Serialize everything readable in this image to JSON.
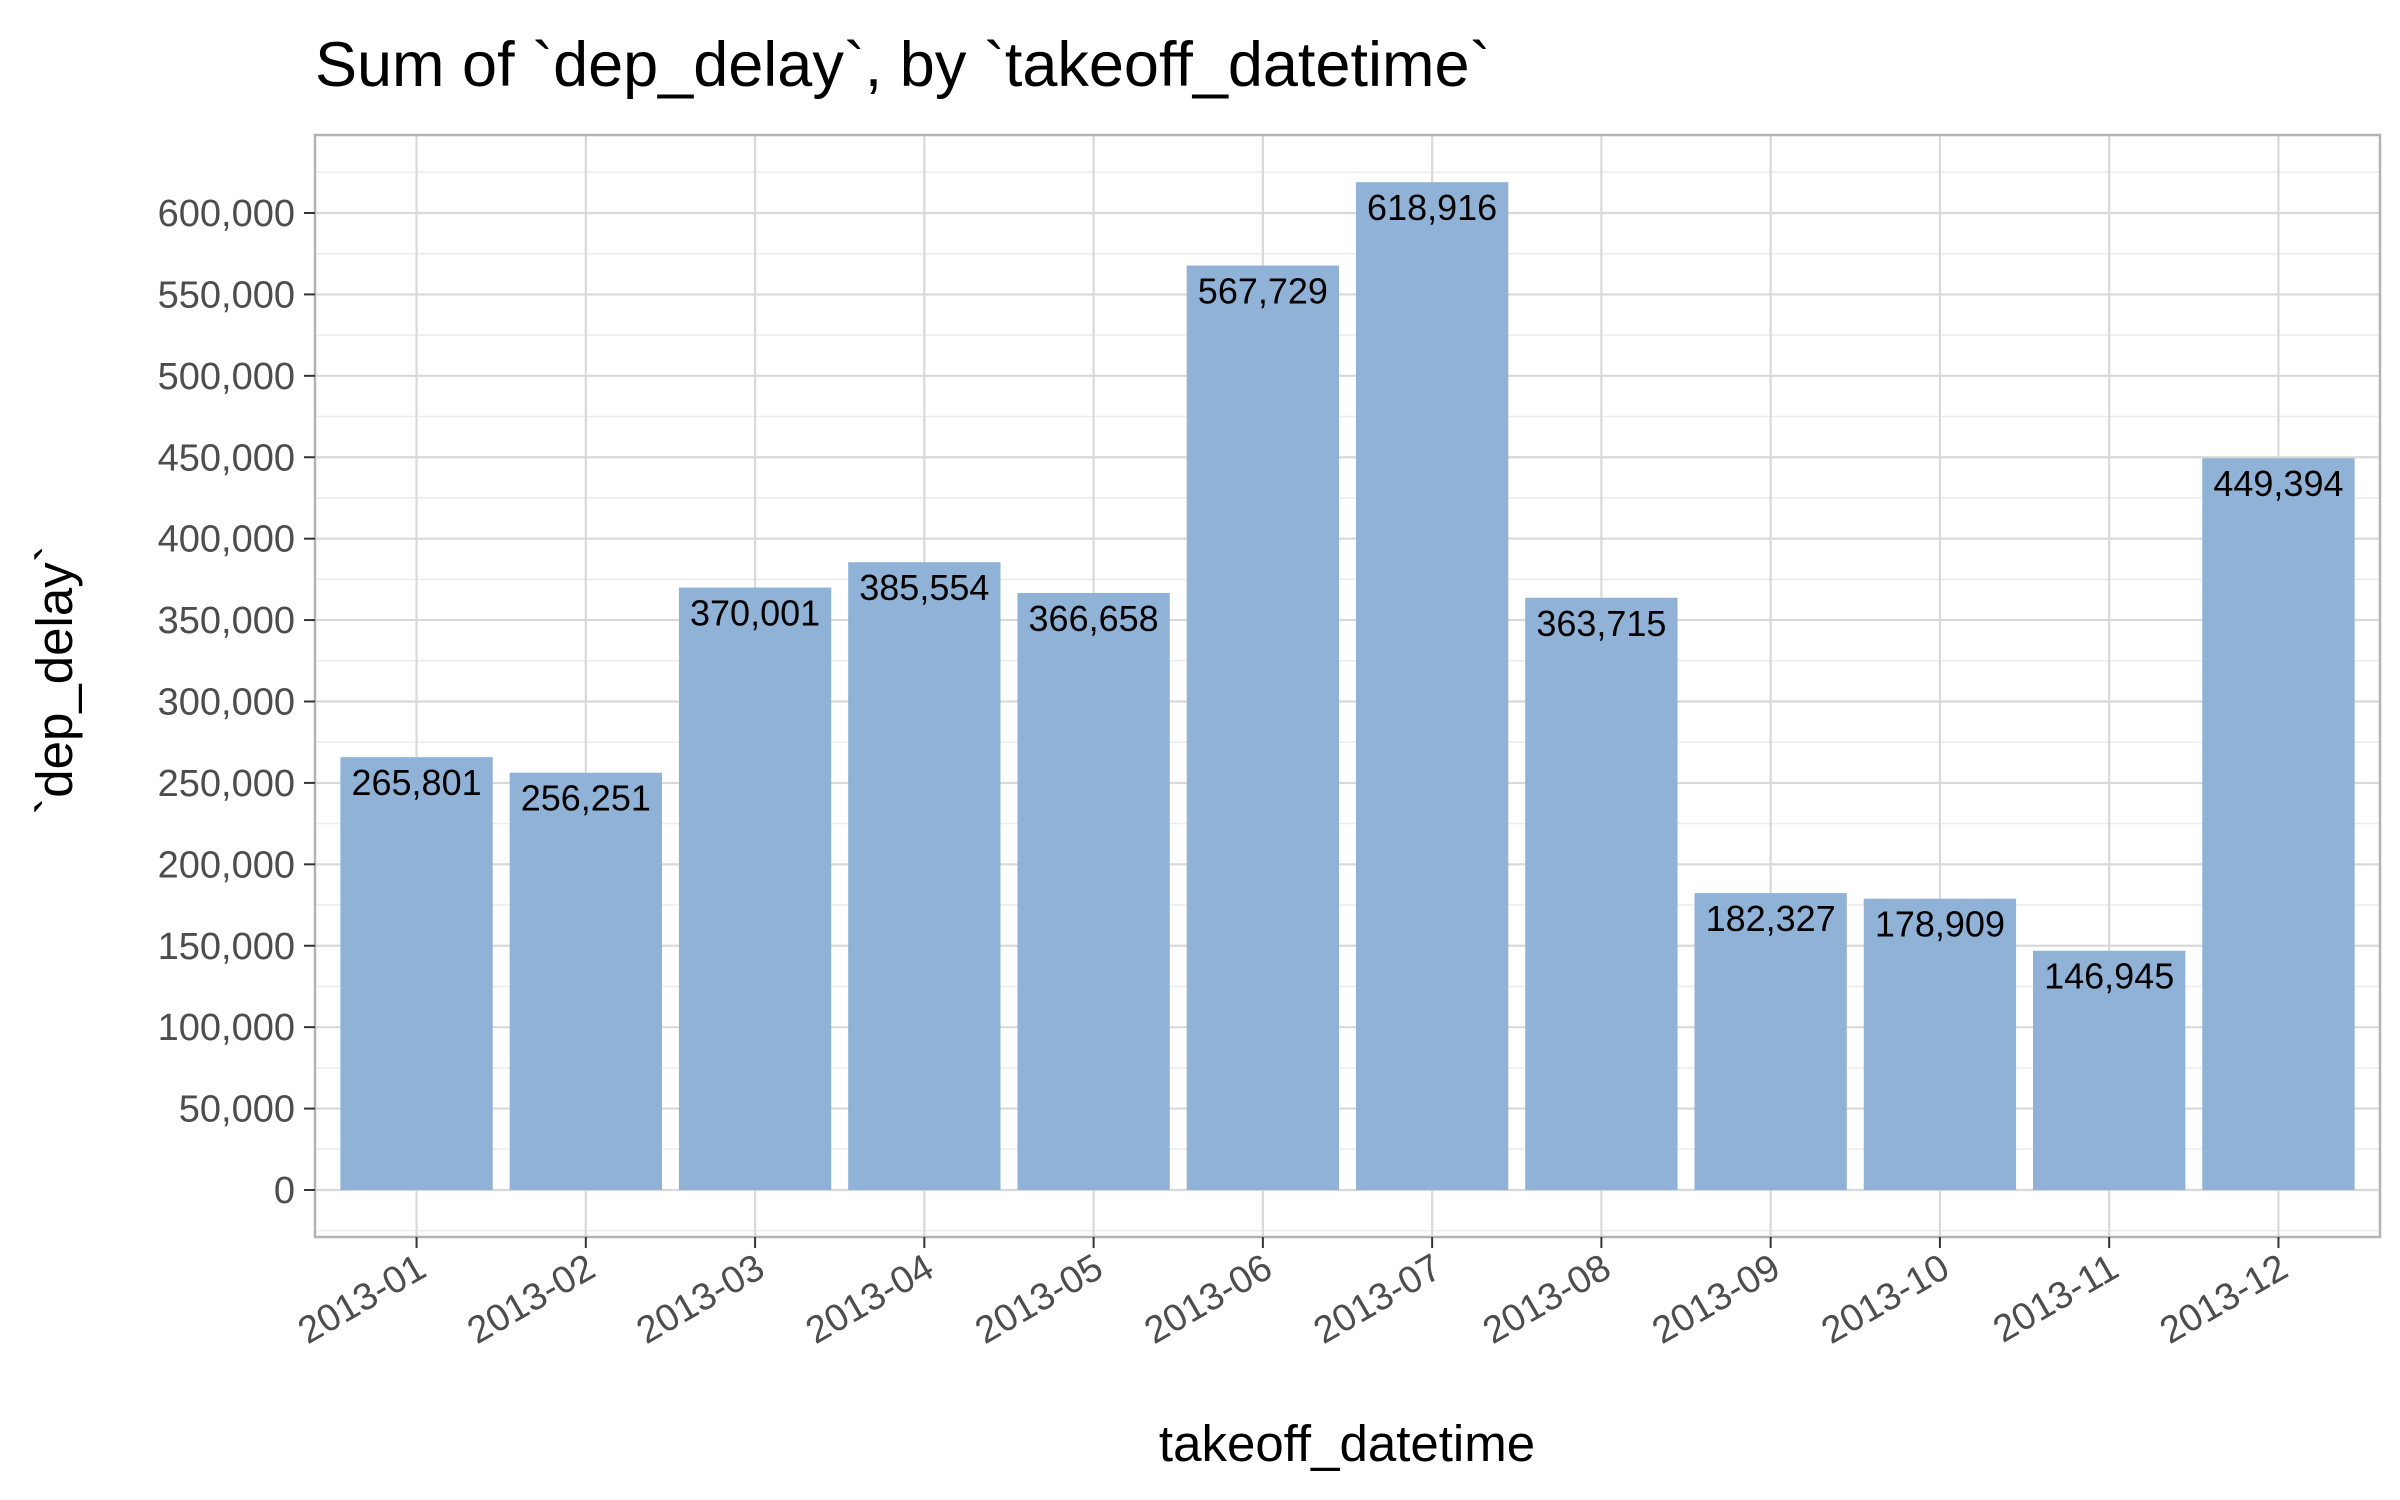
{
  "chart_data": {
    "type": "bar",
    "title": "Sum of `dep_delay`, by `takeoff_datetime`",
    "xlabel": "takeoff_datetime",
    "ylabel": "`dep_delay`",
    "categories": [
      "2013-01",
      "2013-02",
      "2013-03",
      "2013-04",
      "2013-05",
      "2013-06",
      "2013-07",
      "2013-08",
      "2013-09",
      "2013-10",
      "2013-11",
      "2013-12"
    ],
    "values": [
      265801,
      256251,
      370001,
      385554,
      366658,
      567729,
      618916,
      363715,
      182327,
      178909,
      146945,
      449394
    ],
    "value_labels": [
      "265,801",
      "256,251",
      "370,001",
      "385,554",
      "366,658",
      "567,729",
      "618,916",
      "363,715",
      "182,327",
      "178,909",
      "146,945",
      "449,394"
    ],
    "yticks": [
      0,
      50000,
      100000,
      150000,
      200000,
      250000,
      300000,
      350000,
      400000,
      450000,
      500000,
      550000,
      600000
    ],
    "ytick_labels": [
      "0",
      "50,000",
      "100,000",
      "150,000",
      "200,000",
      "250,000",
      "300,000",
      "350,000",
      "400,000",
      "450,000",
      "500,000",
      "550,000",
      "600,000"
    ],
    "ylim": [
      -30000,
      650000
    ],
    "grid": true,
    "legend": "none",
    "colors": {
      "bar": "#8fb2d6",
      "grid_major": "#d9d9d9",
      "grid_minor": "#ececec",
      "panel_border": "#b3b3b3",
      "tick_text": "#4d4d4d"
    }
  }
}
